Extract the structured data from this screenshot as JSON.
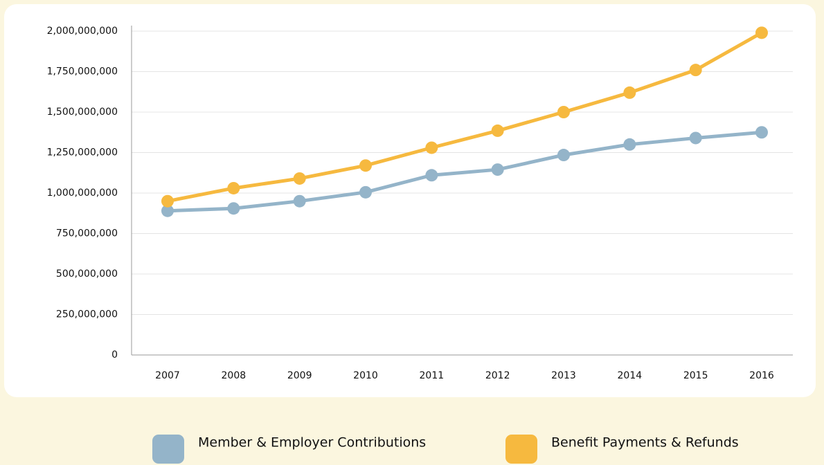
{
  "chart_data": {
    "type": "line",
    "categories": [
      "2007",
      "2008",
      "2009",
      "2010",
      "2011",
      "2012",
      "2013",
      "2014",
      "2015",
      "2016"
    ],
    "series": [
      {
        "name": "Member & Employer Contributions",
        "color": "#94b4c9",
        "values": [
          890000000,
          905000000,
          950000000,
          1005000000,
          1110000000,
          1145000000,
          1235000000,
          1300000000,
          1340000000,
          1375000000
        ]
      },
      {
        "name": "Benefit Payments & Refunds",
        "color": "#f6b93f",
        "values": [
          950000000,
          1030000000,
          1090000000,
          1170000000,
          1280000000,
          1385000000,
          1500000000,
          1620000000,
          1760000000,
          1990000000
        ]
      }
    ],
    "ylim": [
      0,
      2000000000
    ],
    "yticks": [
      {
        "value": 0,
        "label": "0"
      },
      {
        "value": 250000000,
        "label": "250,000,000"
      },
      {
        "value": 500000000,
        "label": "500,000,000"
      },
      {
        "value": 750000000,
        "label": "750,000,000"
      },
      {
        "value": 1000000000,
        "label": "1,000,000,000"
      },
      {
        "value": 1250000000,
        "label": "1,250,000,000"
      },
      {
        "value": 1500000000,
        "label": "1,500,000,000"
      },
      {
        "value": 1750000000,
        "label": "1,750,000,000"
      },
      {
        "value": 2000000000,
        "label": "2,000,000,000"
      }
    ],
    "grid": true,
    "legend": "bottom"
  }
}
